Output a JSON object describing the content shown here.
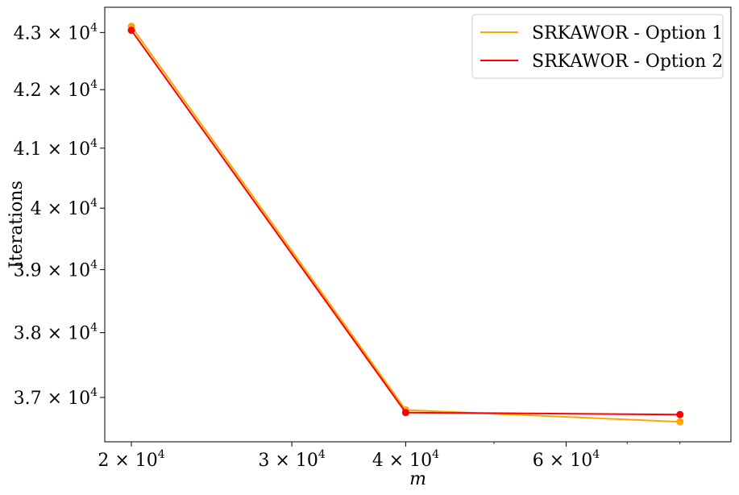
{
  "chart_data": {
    "type": "line",
    "title": "",
    "xlabel": "m",
    "ylabel": "Iterations",
    "x_scale": "log",
    "y_scale": "log",
    "x": [
      20000,
      40000,
      80000
    ],
    "xlim": [
      18700,
      91000
    ],
    "ylim": [
      36330,
      43450
    ],
    "x_ticks": [
      {
        "value": 20000,
        "mantissa": "2",
        "exp": "4"
      },
      {
        "value": 30000,
        "mantissa": "3",
        "exp": "4"
      },
      {
        "value": 40000,
        "mantissa": "4",
        "exp": "4"
      },
      {
        "value": 60000,
        "mantissa": "6",
        "exp": "4"
      }
    ],
    "x_minor_ticks": [
      50000,
      70000,
      80000
    ],
    "y_ticks": [
      {
        "value": 37000,
        "mantissa": "3.7",
        "exp": "4"
      },
      {
        "value": 38000,
        "mantissa": "3.8",
        "exp": "4"
      },
      {
        "value": 39000,
        "mantissa": "3.9",
        "exp": "4"
      },
      {
        "value": 40000,
        "mantissa": "4",
        "exp": "4"
      },
      {
        "value": 41000,
        "mantissa": "4.1",
        "exp": "4"
      },
      {
        "value": 42000,
        "mantissa": "4.2",
        "exp": "4"
      },
      {
        "value": 43000,
        "mantissa": "4.3",
        "exp": "4"
      }
    ],
    "series": [
      {
        "name": "SRKAWOR - Option 1",
        "color": "#ffa500",
        "values": [
          43110,
          36810,
          36630
        ]
      },
      {
        "name": "SRKAWOR - Option 2",
        "color": "#ff0000",
        "values": [
          43040,
          36770,
          36740
        ]
      }
    ],
    "legend": "top-right",
    "grid": false
  }
}
